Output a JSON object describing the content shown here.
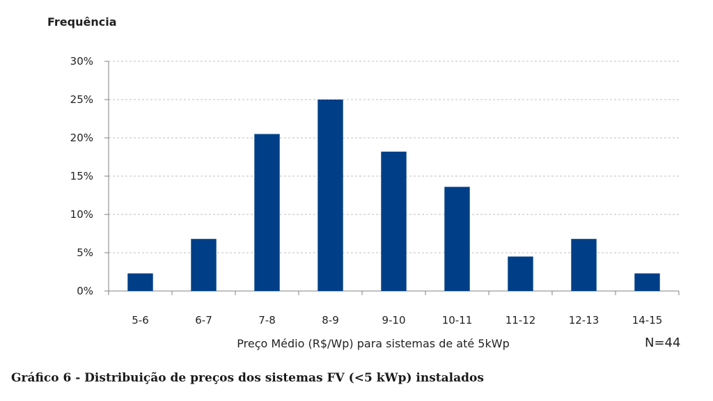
{
  "chart_data": {
    "type": "bar",
    "ylabel": "Frequência",
    "xlabel": "Preço Médio (R$/Wp) para sistemas de até 5kWp",
    "annotation": "N=44",
    "caption": "Gráfico 6 - Distribuição de preços dos sistemas FV (<5 kWp) instalados",
    "categories": [
      "5-6",
      "6-7",
      "7-8",
      "8-9",
      "9-10",
      "10-11",
      "11-12",
      "12-13",
      "14-15"
    ],
    "values": [
      2.3,
      6.8,
      20.5,
      25.0,
      18.2,
      13.6,
      4.5,
      6.8,
      2.3
    ],
    "ylim": [
      0,
      30
    ],
    "yticks": [
      "0%",
      "5%",
      "10%",
      "15%",
      "20%",
      "25%",
      "30%"
    ],
    "ytick_values": [
      0,
      5,
      10,
      15,
      20,
      25,
      30
    ],
    "bar_color": "#003f87",
    "grid": true,
    "grid_style": "dashed"
  }
}
